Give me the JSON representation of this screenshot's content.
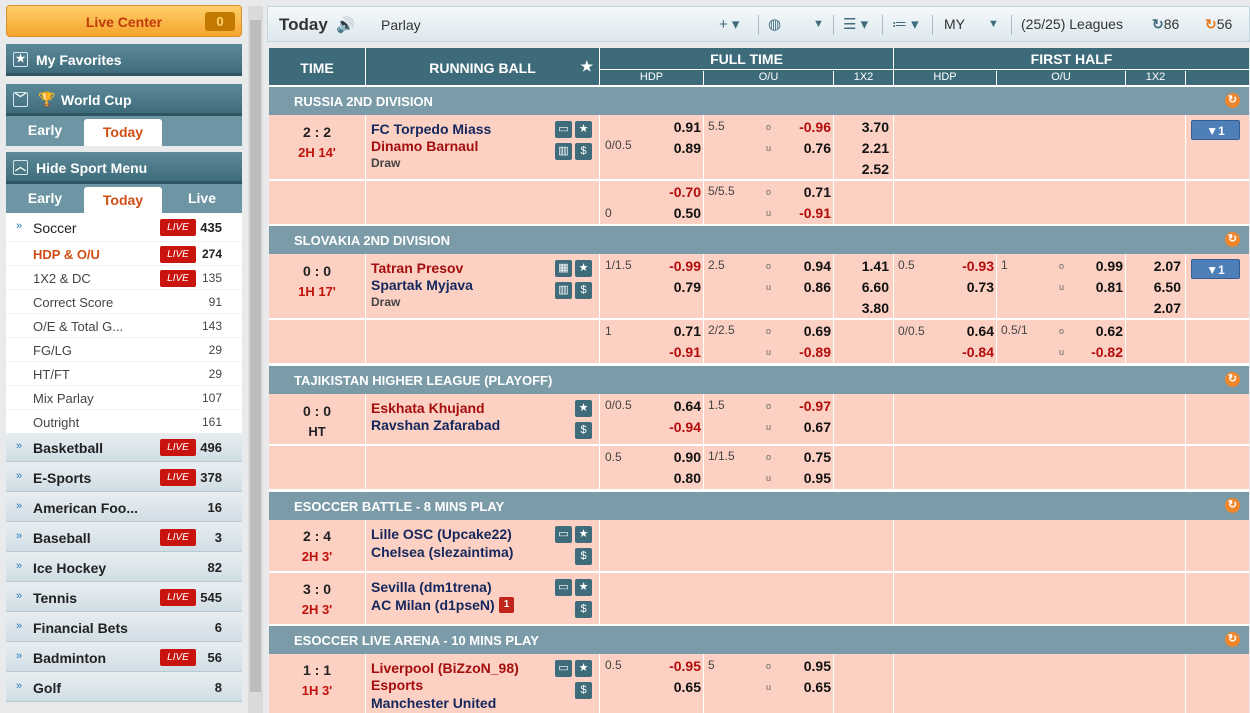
{
  "sidebar": {
    "live_center": {
      "label": "Live Center",
      "count": "0"
    },
    "my_favorites": "My Favorites",
    "world_cup": {
      "label": "World Cup",
      "tabs": [
        "Early",
        "Today"
      ]
    },
    "sport_menu": {
      "label": "Hide Sport Menu",
      "tabs": [
        "Early",
        "Today",
        "Live"
      ]
    },
    "soccer": {
      "label": "Soccer",
      "count": "435",
      "live": "LIVE"
    },
    "soccer_sub": [
      {
        "label": "HDP & O/U",
        "count": "274",
        "live": "LIVE"
      },
      {
        "label": "1X2 & DC",
        "count": "135",
        "live": "LIVE"
      },
      {
        "label": "Correct Score",
        "count": "91"
      },
      {
        "label": "O/E & Total G...",
        "count": "143"
      },
      {
        "label": "FG/LG",
        "count": "29"
      },
      {
        "label": "HT/FT",
        "count": "29"
      },
      {
        "label": "Mix Parlay",
        "count": "107"
      },
      {
        "label": "Outright",
        "count": "161"
      }
    ],
    "sports": [
      {
        "label": "Basketball",
        "count": "496",
        "live": "LIVE"
      },
      {
        "label": "E-Sports",
        "count": "378",
        "live": "LIVE"
      },
      {
        "label": "American Foo...",
        "count": "16"
      },
      {
        "label": "Baseball",
        "count": "3",
        "live": "LIVE"
      },
      {
        "label": "Ice Hockey",
        "count": "82"
      },
      {
        "label": "Tennis",
        "count": "545",
        "live": "LIVE"
      },
      {
        "label": "Financial Bets",
        "count": "6"
      },
      {
        "label": "Badminton",
        "count": "56",
        "live": "LIVE"
      },
      {
        "label": "Golf",
        "count": "8"
      }
    ]
  },
  "toolbar": {
    "title": "Today",
    "mode": "Parlay",
    "odds_type": "MY",
    "leagues": "(25/25) Leagues",
    "refresh_left": "86",
    "refresh_right": "56"
  },
  "grid": {
    "headers": {
      "time": "TIME",
      "running_ball": "RUNNING BALL",
      "full_time": "FULL TIME",
      "first_half": "FIRST HALF",
      "ft_sub": [
        "HDP",
        "O/U",
        "1X2"
      ],
      "fh_sub": [
        "HDP",
        "O/U",
        "1X2"
      ]
    },
    "leagues": [
      "RUSSIA 2ND DIVISION",
      "SLOVAKIA 2ND DIVISION",
      "TAJIKISTAN HIGHER LEAGUE (PLAYOFF)",
      "ESOCCER BATTLE - 8 MINS PLAY",
      "ESOCCER LIVE ARENA - 10 MINS PLAY"
    ],
    "m1": {
      "score": "2 : 2",
      "time": "2H 14'",
      "home": "FC Torpedo Miass",
      "away": "Dinamo Barnaul",
      "draw": "Draw",
      "hdp": "0/0.5",
      "hdp_home": "0.91",
      "hdp_away": "0.89",
      "ou_line": "5.5",
      "over": "-0.96",
      "under": "0.76",
      "x1": "3.70",
      "x2": "2.21",
      "xd": "2.52",
      "hdp2_home": "-0.70",
      "hdp2_line": "0",
      "hdp2_away": "0.50",
      "ou2_line": "5/5.5",
      "over2": "0.71",
      "under2": "-0.91",
      "more": "▼1"
    },
    "m2": {
      "score": "0 : 0",
      "time": "1H 17'",
      "home": "Tatran Presov",
      "away": "Spartak Myjava",
      "draw": "Draw",
      "hdp": "1/1.5",
      "hdp_home": "-0.99",
      "hdp_away": "0.79",
      "ou_line": "2.5",
      "over": "0.94",
      "under": "0.86",
      "x1": "1.41",
      "x2": "6.60",
      "xd": "3.80",
      "fh_hdp": "0.5",
      "fh_home": "-0.93",
      "fh_away": "0.73",
      "fh_ou_line": "1",
      "fh_over": "0.99",
      "fh_under": "0.81",
      "fh_x1": "2.07",
      "fh_x2": "6.50",
      "fh_xd": "2.07",
      "hdp2_line": "1",
      "hdp2_home": "0.71",
      "hdp2_away": "-0.91",
      "ou2_line": "2/2.5",
      "over2": "0.69",
      "under2": "-0.89",
      "fh2_hdp": "0/0.5",
      "fh2_home": "0.64",
      "fh2_away": "-0.84",
      "fh2_ou_line": "0.5/1",
      "fh2_over": "0.62",
      "fh2_under": "-0.82",
      "more": "▼1"
    },
    "m3": {
      "score": "0 : 0",
      "time": "HT",
      "home": "Eskhata Khujand",
      "away": "Ravshan Zafarabad",
      "hdp": "0/0.5",
      "hdp_home": "0.64",
      "hdp_away": "-0.94",
      "ou_line": "1.5",
      "over": "-0.97",
      "under": "0.67",
      "hdp2_line": "0.5",
      "hdp2_home": "0.90",
      "hdp2_away": "0.80",
      "ou2_line": "1/1.5",
      "over2": "0.75",
      "under2": "0.95"
    },
    "m4": {
      "score": "2 : 4",
      "time": "2H 3'",
      "home": "Lille OSC (Upcake22)",
      "away": "Chelsea (slezaintima)"
    },
    "m5": {
      "score": "3 : 0",
      "time": "2H 3'",
      "home": "Sevilla (dm1trena)",
      "away": "AC Milan (d1pseN)",
      "red_card": "1"
    },
    "m6": {
      "score": "1 : 1",
      "time": "1H 3'",
      "home": "Liverpool (BiZzoN_98)",
      "home2": "Esports",
      "away": "Manchester United",
      "hdp": "0.5",
      "hdp_home": "-0.95",
      "hdp_away": "0.65",
      "ou_line": "5",
      "over": "0.95",
      "under": "0.65"
    },
    "ou_letters": {
      "over": "o",
      "under": "u"
    }
  },
  "colors": {
    "header": "#3d6b7a",
    "league": "#7a9ba7",
    "row_pink": "#fcd0c2",
    "negative": "#b20c0c",
    "live": "#c9130f",
    "accent": "#d24d14"
  }
}
